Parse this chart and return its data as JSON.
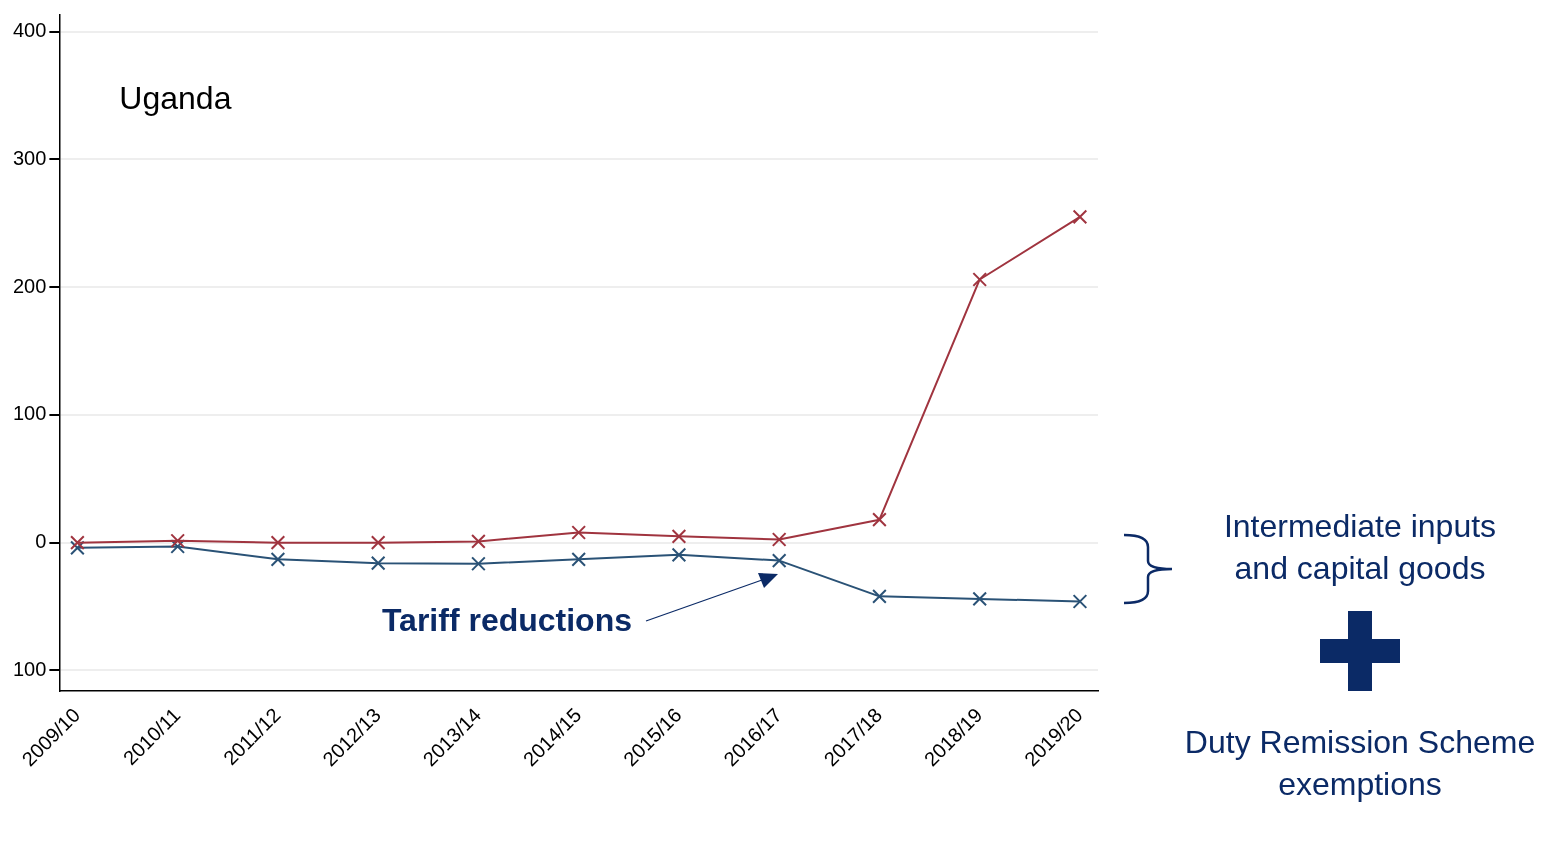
{
  "chart_data": {
    "type": "line",
    "categories": [
      "2009/10",
      "2010/11",
      "2011/12",
      "2012/13",
      "2013/14",
      "2014/15",
      "2015/16",
      "2016/17",
      "2017/18",
      "2018/19",
      "2019/20"
    ],
    "series": [
      {
        "color": "#a0343f",
        "values": [
          0,
          1.5,
          0,
          0,
          1,
          8,
          5,
          2.5,
          18,
          206,
          255
        ]
      },
      {
        "color": "#2a5276",
        "values": [
          -4,
          -3,
          -13,
          -16,
          -16.5,
          -13,
          -9.5,
          -14,
          -42,
          -44,
          -46
        ]
      }
    ],
    "ylim": [
      -116,
      413
    ],
    "yticks": [
      {
        "value": -100,
        "label": "100"
      },
      0,
      100,
      200,
      300,
      400
    ],
    "grid": "y",
    "legend": false,
    "marker": "cross",
    "line_style": "solid",
    "annotations": [
      "Uganda",
      "Tariff reductions",
      "Intermediate inputs and capital goods",
      "Duty Remission Scheme exemptions"
    ]
  }
}
